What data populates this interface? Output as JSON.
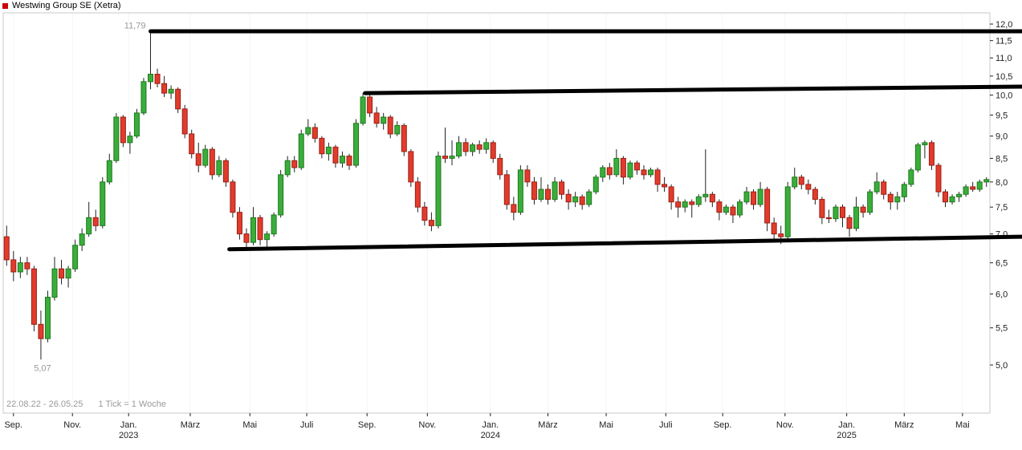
{
  "header": {
    "title": "Westwing Group SE (Xetra)",
    "legend_marker_color": "#cc0000"
  },
  "footer": {
    "range_label": "22.08.22 - 26.05.25",
    "tick_label": "1 Tick = 1 Woche"
  },
  "chart_data": {
    "type": "candlestick",
    "title": "Westwing Group SE (Xetra)",
    "period": "22.08.22 - 26.05.25",
    "interval": "1 Tick = 1 Woche",
    "y_scale": "log",
    "legend_position": "top-left",
    "grid": "faint-vertical",
    "y_axis": {
      "min": 5.0,
      "max": 12.0,
      "side": "right",
      "tick_values": [
        12.0,
        11.5,
        11.0,
        10.5,
        10.0,
        9.5,
        9.0,
        8.5,
        8.0,
        7.5,
        7.0,
        6.5,
        6.0,
        5.5,
        5.0
      ],
      "tick_labels": [
        "12,0",
        "11,5",
        "11,0",
        "10,5",
        "10,0",
        "9,5",
        "9,0",
        "8,5",
        "8,0",
        "7,5",
        "7,0",
        "6,5",
        "6,0",
        "5,5",
        "5,0"
      ]
    },
    "x_axis": {
      "ticks": [
        {
          "label": "Sep.",
          "pos": 1.0
        },
        {
          "label": "Nov.",
          "pos": 9.6
        },
        {
          "label": "Jan.",
          "pos": 17.8
        },
        {
          "label": "März",
          "pos": 26.8
        },
        {
          "label": "Mai",
          "pos": 35.5
        },
        {
          "label": "Juli",
          "pos": 43.8
        },
        {
          "label": "Sep.",
          "pos": 52.6
        },
        {
          "label": "Nov.",
          "pos": 61.4
        },
        {
          "label": "Jan.",
          "pos": 70.6
        },
        {
          "label": "März",
          "pos": 79.0
        },
        {
          "label": "Mai",
          "pos": 87.5
        },
        {
          "label": "Juli",
          "pos": 96.2
        },
        {
          "label": "Sep.",
          "pos": 104.5
        },
        {
          "label": "Nov.",
          "pos": 113.6
        },
        {
          "label": "Jan.",
          "pos": 122.6
        },
        {
          "label": "März",
          "pos": 131.0
        },
        {
          "label": "Mai",
          "pos": 139.5
        }
      ],
      "years": [
        {
          "label": "2023",
          "pos": 17.8
        },
        {
          "label": "2024",
          "pos": 70.6
        },
        {
          "label": "2025",
          "pos": 122.6
        }
      ]
    },
    "annotations": {
      "high": {
        "label": "11,79",
        "value": 11.79,
        "pos": 21
      },
      "low": {
        "label": "5,07",
        "value": 5.07,
        "pos": 5
      }
    },
    "trend_lines": [
      {
        "name": "trend-line-upper-resistance",
        "from_pos": 21.0,
        "from_value": 11.78,
        "to_value": 11.78
      },
      {
        "name": "trend-line-mid-resistance",
        "from_pos": 52.3,
        "from_value": 10.05,
        "to_value": 10.22
      },
      {
        "name": "trend-line-support",
        "from_pos": 32.5,
        "from_value": 6.73,
        "to_value": 6.95
      }
    ],
    "colors": {
      "up": "#3aad3a",
      "up_border": "#1e7a1e",
      "down": "#e23b2c",
      "down_border": "#992015",
      "wick": "#222222",
      "trend_line": "#000000",
      "grid": "#f4f4f4",
      "frame": "#c8c8c8",
      "axis_text": "#222222",
      "annotation_text": "#999999"
    },
    "candles": [
      [
        6.95,
        7.15,
        6.45,
        6.55
      ],
      [
        6.55,
        6.7,
        6.2,
        6.35
      ],
      [
        6.35,
        6.6,
        6.25,
        6.5
      ],
      [
        6.5,
        6.6,
        6.3,
        6.4
      ],
      [
        6.4,
        6.45,
        5.45,
        5.55
      ],
      [
        5.55,
        5.75,
        5.07,
        5.35
      ],
      [
        5.35,
        6.05,
        5.3,
        5.95
      ],
      [
        5.95,
        6.6,
        5.9,
        6.4
      ],
      [
        6.4,
        6.55,
        6.15,
        6.25
      ],
      [
        6.25,
        6.45,
        6.1,
        6.4
      ],
      [
        6.4,
        6.9,
        6.35,
        6.8
      ],
      [
        6.8,
        7.1,
        6.7,
        7.0
      ],
      [
        7.0,
        7.6,
        6.95,
        7.3
      ],
      [
        7.3,
        7.45,
        7.05,
        7.15
      ],
      [
        7.15,
        8.1,
        7.1,
        8.0
      ],
      [
        8.0,
        8.6,
        7.95,
        8.45
      ],
      [
        8.45,
        9.55,
        8.4,
        9.45
      ],
      [
        9.45,
        9.5,
        8.75,
        8.85
      ],
      [
        8.85,
        9.1,
        8.6,
        9.0
      ],
      [
        9.0,
        9.65,
        8.95,
        9.55
      ],
      [
        9.55,
        10.45,
        9.5,
        10.35
      ],
      [
        10.35,
        11.79,
        10.15,
        10.55
      ],
      [
        10.55,
        10.7,
        10.2,
        10.3
      ],
      [
        10.3,
        10.5,
        9.95,
        10.05
      ],
      [
        10.05,
        10.25,
        9.9,
        10.15
      ],
      [
        10.15,
        10.2,
        9.55,
        9.65
      ],
      [
        9.65,
        9.75,
        8.95,
        9.05
      ],
      [
        9.05,
        9.15,
        8.5,
        8.6
      ],
      [
        8.6,
        8.85,
        8.2,
        8.35
      ],
      [
        8.35,
        8.8,
        8.3,
        8.7
      ],
      [
        8.7,
        8.75,
        8.05,
        8.15
      ],
      [
        8.15,
        8.55,
        8.1,
        8.45
      ],
      [
        8.45,
        8.5,
        7.9,
        8.0
      ],
      [
        8.0,
        8.05,
        7.3,
        7.4
      ],
      [
        7.4,
        7.5,
        6.9,
        7.0
      ],
      [
        7.0,
        7.1,
        6.75,
        6.85
      ],
      [
        6.85,
        7.5,
        6.8,
        7.3
      ],
      [
        7.3,
        7.35,
        6.8,
        6.9
      ],
      [
        6.9,
        7.05,
        6.74,
        7.0
      ],
      [
        7.0,
        7.4,
        6.95,
        7.35
      ],
      [
        7.35,
        8.25,
        7.3,
        8.15
      ],
      [
        8.15,
        8.55,
        8.1,
        8.45
      ],
      [
        8.45,
        8.55,
        8.2,
        8.3
      ],
      [
        8.3,
        9.15,
        8.25,
        9.05
      ],
      [
        9.05,
        9.4,
        9.0,
        9.2
      ],
      [
        9.2,
        9.3,
        8.85,
        8.95
      ],
      [
        8.95,
        9.0,
        8.5,
        8.6
      ],
      [
        8.6,
        8.85,
        8.45,
        8.75
      ],
      [
        8.75,
        8.8,
        8.3,
        8.4
      ],
      [
        8.4,
        8.65,
        8.3,
        8.55
      ],
      [
        8.55,
        8.6,
        8.25,
        8.35
      ],
      [
        8.35,
        9.4,
        8.3,
        9.3
      ],
      [
        9.3,
        10.05,
        9.25,
        9.95
      ],
      [
        9.95,
        10.1,
        9.45,
        9.55
      ],
      [
        9.55,
        9.7,
        9.2,
        9.3
      ],
      [
        9.3,
        9.55,
        9.15,
        9.45
      ],
      [
        9.45,
        9.5,
        8.95,
        9.05
      ],
      [
        9.05,
        9.35,
        9.0,
        9.25
      ],
      [
        9.25,
        9.3,
        8.55,
        8.65
      ],
      [
        8.65,
        8.7,
        7.9,
        8.0
      ],
      [
        8.0,
        8.1,
        7.4,
        7.5
      ],
      [
        7.5,
        7.6,
        7.15,
        7.25
      ],
      [
        7.25,
        7.4,
        7.05,
        7.15
      ],
      [
        7.15,
        8.65,
        7.1,
        8.55
      ],
      [
        8.55,
        9.2,
        8.4,
        8.5
      ],
      [
        8.5,
        8.9,
        8.35,
        8.55
      ],
      [
        8.55,
        9.0,
        8.5,
        8.85
      ],
      [
        8.85,
        8.95,
        8.55,
        8.65
      ],
      [
        8.65,
        8.85,
        8.55,
        8.8
      ],
      [
        8.8,
        8.9,
        8.6,
        8.7
      ],
      [
        8.7,
        8.95,
        8.6,
        8.85
      ],
      [
        8.85,
        8.9,
        8.4,
        8.5
      ],
      [
        8.5,
        8.6,
        8.05,
        8.15
      ],
      [
        8.15,
        8.25,
        7.45,
        7.55
      ],
      [
        7.55,
        7.7,
        7.25,
        7.4
      ],
      [
        7.4,
        8.35,
        7.35,
        8.25
      ],
      [
        8.25,
        8.35,
        7.9,
        8.0
      ],
      [
        8.0,
        8.1,
        7.55,
        7.65
      ],
      [
        7.65,
        8.1,
        7.6,
        7.85
      ],
      [
        7.85,
        7.95,
        7.55,
        7.65
      ],
      [
        7.65,
        8.1,
        7.6,
        8.0
      ],
      [
        8.0,
        8.05,
        7.65,
        7.75
      ],
      [
        7.75,
        7.85,
        7.45,
        7.6
      ],
      [
        7.6,
        7.8,
        7.5,
        7.7
      ],
      [
        7.7,
        7.75,
        7.45,
        7.55
      ],
      [
        7.55,
        7.85,
        7.5,
        7.8
      ],
      [
        7.8,
        8.15,
        7.75,
        8.1
      ],
      [
        8.1,
        8.35,
        8.0,
        8.3
      ],
      [
        8.3,
        8.4,
        8.05,
        8.15
      ],
      [
        8.15,
        8.7,
        8.1,
        8.5
      ],
      [
        8.5,
        8.55,
        7.95,
        8.1
      ],
      [
        8.1,
        8.45,
        8.05,
        8.4
      ],
      [
        8.4,
        8.45,
        8.15,
        8.25
      ],
      [
        8.25,
        8.35,
        8.05,
        8.15
      ],
      [
        8.15,
        8.3,
        8.1,
        8.25
      ],
      [
        8.25,
        8.3,
        7.8,
        7.95
      ],
      [
        7.95,
        8.1,
        7.8,
        7.9
      ],
      [
        7.9,
        7.95,
        7.45,
        7.6
      ],
      [
        7.6,
        7.7,
        7.3,
        7.5
      ],
      [
        7.5,
        7.65,
        7.4,
        7.6
      ],
      [
        7.6,
        7.65,
        7.3,
        7.55
      ],
      [
        7.55,
        7.75,
        7.5,
        7.7
      ],
      [
        7.7,
        8.7,
        7.6,
        7.75
      ],
      [
        7.75,
        7.8,
        7.5,
        7.6
      ],
      [
        7.6,
        7.65,
        7.25,
        7.4
      ],
      [
        7.4,
        7.55,
        7.35,
        7.5
      ],
      [
        7.5,
        7.55,
        7.2,
        7.35
      ],
      [
        7.35,
        7.65,
        7.3,
        7.6
      ],
      [
        7.6,
        7.9,
        7.55,
        7.8
      ],
      [
        7.8,
        7.85,
        7.45,
        7.55
      ],
      [
        7.55,
        8.0,
        7.5,
        7.85
      ],
      [
        7.85,
        7.9,
        7.05,
        7.2
      ],
      [
        7.2,
        7.3,
        6.88,
        7.0
      ],
      [
        7.0,
        7.15,
        6.82,
        6.95
      ],
      [
        6.95,
        8.0,
        6.9,
        7.9
      ],
      [
        7.9,
        8.3,
        7.85,
        8.1
      ],
      [
        8.1,
        8.15,
        7.85,
        7.95
      ],
      [
        7.95,
        8.05,
        7.75,
        7.85
      ],
      [
        7.85,
        7.9,
        7.55,
        7.65
      ],
      [
        7.65,
        7.7,
        7.18,
        7.3
      ],
      [
        7.3,
        7.45,
        7.2,
        7.28
      ],
      [
        7.28,
        7.55,
        7.22,
        7.5
      ],
      [
        7.5,
        7.55,
        7.12,
        7.3
      ],
      [
        7.3,
        7.35,
        6.95,
        7.1
      ],
      [
        7.1,
        7.7,
        7.05,
        7.5
      ],
      [
        7.5,
        7.55,
        7.3,
        7.4
      ],
      [
        7.4,
        7.85,
        7.35,
        7.8
      ],
      [
        7.8,
        8.2,
        7.75,
        8.0
      ],
      [
        8.0,
        8.05,
        7.65,
        7.75
      ],
      [
        7.75,
        7.8,
        7.45,
        7.6
      ],
      [
        7.6,
        7.8,
        7.45,
        7.7
      ],
      [
        7.7,
        8.0,
        7.6,
        7.95
      ],
      [
        7.95,
        8.3,
        7.9,
        8.25
      ],
      [
        8.25,
        8.85,
        8.2,
        8.8
      ],
      [
        8.8,
        8.9,
        8.5,
        8.85
      ],
      [
        8.85,
        8.9,
        8.25,
        8.35
      ],
      [
        8.35,
        8.4,
        7.7,
        7.8
      ],
      [
        7.8,
        7.85,
        7.5,
        7.6
      ],
      [
        7.6,
        7.75,
        7.55,
        7.7
      ],
      [
        7.7,
        7.8,
        7.6,
        7.75
      ],
      [
        7.75,
        7.95,
        7.7,
        7.9
      ],
      [
        7.9,
        8.0,
        7.8,
        7.85
      ],
      [
        7.85,
        8.05,
        7.8,
        8.0
      ],
      [
        8.0,
        8.1,
        7.9,
        8.05
      ]
    ]
  }
}
